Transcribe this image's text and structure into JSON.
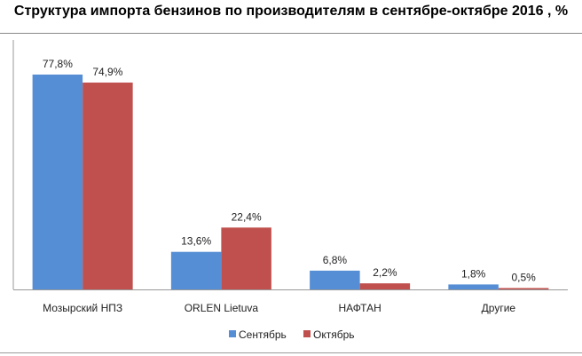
{
  "chart_data": {
    "type": "bar",
    "title": "Структура импорта бензинов по производителям в сентябре-октябре 2016 , %",
    "categories": [
      "Мозырский НПЗ",
      "ORLEN Lietuva",
      "НАФТАН",
      "Другие"
    ],
    "series": [
      {
        "name": "Сентябрь",
        "values": [
          77.8,
          13.6,
          6.8,
          1.8
        ],
        "labels": [
          "77,8%",
          "13,6%",
          "6,8%",
          "1,8%"
        ],
        "color": "#558ed5"
      },
      {
        "name": "Октябрь",
        "values": [
          74.9,
          22.4,
          2.2,
          0.5
        ],
        "labels": [
          "74,9%",
          "22,4%",
          "2,2%",
          "0,5%"
        ],
        "color": "#c0504d"
      }
    ],
    "xlabel": "",
    "ylabel": "",
    "ylim": [
      0,
      100
    ],
    "grid": false,
    "legend": "bottom"
  }
}
